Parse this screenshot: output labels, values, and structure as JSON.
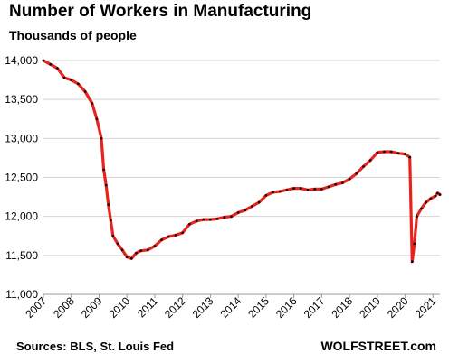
{
  "chart_data": {
    "type": "line",
    "title": "Number of Workers in Manufacturing",
    "subtitle": "Thousands of people",
    "source": "Sources: BLS, St. Louis Fed",
    "brand": "WOLFSTREET.com",
    "xlabel": "",
    "ylabel": "",
    "x_ticks": [
      "2007",
      "2008",
      "2009",
      "2010",
      "2011",
      "2012",
      "2013",
      "2014",
      "2015",
      "2016",
      "2017",
      "2018",
      "2019",
      "2020",
      "2021"
    ],
    "y_ticks": [
      "11,000",
      "11,500",
      "12,000",
      "12,500",
      "13,000",
      "13,500",
      "14,000"
    ],
    "xlim": [
      "2007-01",
      "2021-04"
    ],
    "ylim": [
      11000,
      14000
    ],
    "grid": "horizontal",
    "line_color": "#e8231e",
    "marker_color": "#000000",
    "series": [
      {
        "points": [
          [
            "2007-01",
            14000
          ],
          [
            "2007-04",
            13950
          ],
          [
            "2007-07",
            13900
          ],
          [
            "2007-10",
            13780
          ],
          [
            "2008-01",
            13750
          ],
          [
            "2008-04",
            13700
          ],
          [
            "2008-07",
            13600
          ],
          [
            "2008-10",
            13450
          ],
          [
            "2008-12",
            13250
          ],
          [
            "2009-02",
            13000
          ],
          [
            "2009-03",
            12600
          ],
          [
            "2009-04",
            12400
          ],
          [
            "2009-05",
            12150
          ],
          [
            "2009-06",
            11950
          ],
          [
            "2009-07",
            11750
          ],
          [
            "2009-09",
            11650
          ],
          [
            "2009-11",
            11570
          ],
          [
            "2010-01",
            11480
          ],
          [
            "2010-03",
            11460
          ],
          [
            "2010-05",
            11530
          ],
          [
            "2010-07",
            11560
          ],
          [
            "2010-10",
            11570
          ],
          [
            "2011-01",
            11620
          ],
          [
            "2011-04",
            11700
          ],
          [
            "2011-07",
            11740
          ],
          [
            "2011-10",
            11760
          ],
          [
            "2012-01",
            11790
          ],
          [
            "2012-04",
            11900
          ],
          [
            "2012-07",
            11940
          ],
          [
            "2012-10",
            11960
          ],
          [
            "2013-01",
            11960
          ],
          [
            "2013-04",
            11970
          ],
          [
            "2013-07",
            11990
          ],
          [
            "2013-10",
            12000
          ],
          [
            "2014-01",
            12050
          ],
          [
            "2014-04",
            12080
          ],
          [
            "2014-07",
            12130
          ],
          [
            "2014-10",
            12180
          ],
          [
            "2015-01",
            12270
          ],
          [
            "2015-04",
            12310
          ],
          [
            "2015-07",
            12320
          ],
          [
            "2015-10",
            12340
          ],
          [
            "2016-01",
            12360
          ],
          [
            "2016-04",
            12360
          ],
          [
            "2016-07",
            12340
          ],
          [
            "2016-10",
            12350
          ],
          [
            "2017-01",
            12350
          ],
          [
            "2017-04",
            12380
          ],
          [
            "2017-07",
            12410
          ],
          [
            "2017-10",
            12430
          ],
          [
            "2018-01",
            12480
          ],
          [
            "2018-04",
            12550
          ],
          [
            "2018-07",
            12640
          ],
          [
            "2018-10",
            12720
          ],
          [
            "2019-01",
            12820
          ],
          [
            "2019-04",
            12830
          ],
          [
            "2019-07",
            12830
          ],
          [
            "2019-10",
            12810
          ],
          [
            "2020-01",
            12800
          ],
          [
            "2020-03",
            12760
          ],
          [
            "2020-04",
            11420
          ],
          [
            "2020-05",
            11650
          ],
          [
            "2020-06",
            12000
          ],
          [
            "2020-08",
            12100
          ],
          [
            "2020-10",
            12180
          ],
          [
            "2020-12",
            12230
          ],
          [
            "2021-02",
            12260
          ],
          [
            "2021-03",
            12300
          ],
          [
            "2021-04",
            12280
          ]
        ]
      }
    ]
  }
}
